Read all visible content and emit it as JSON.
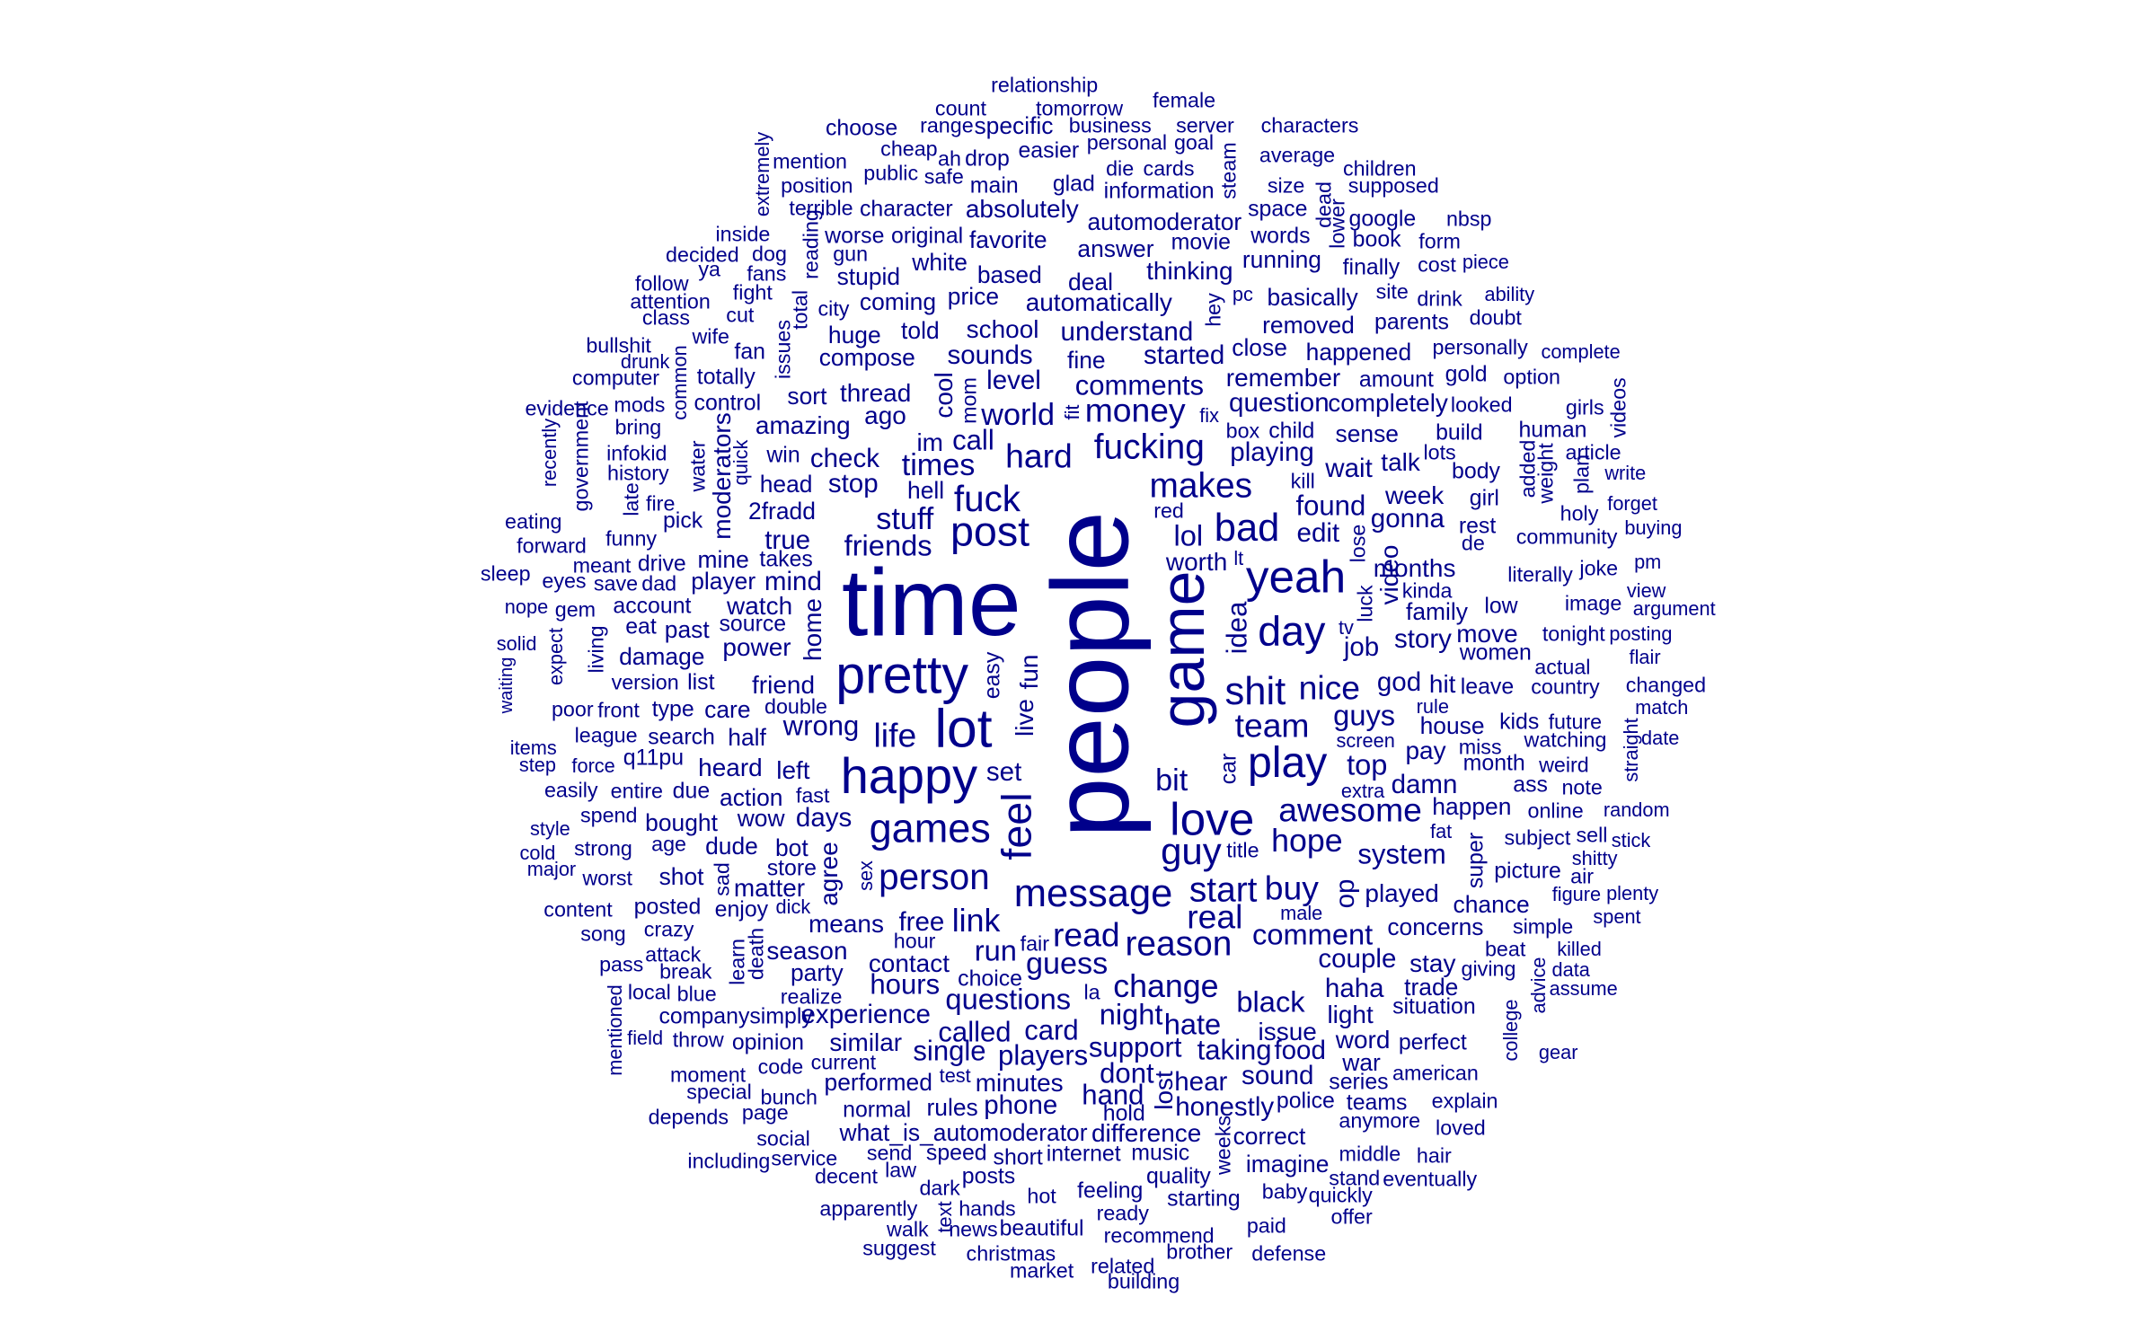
{
  "word_cloud": {
    "color": "#00008b",
    "words": [
      "relationship",
      "count",
      "tomorrow",
      "female",
      "range",
      "specific",
      "business",
      "server",
      "characters",
      "choose",
      "ah",
      "drop",
      "easier",
      "personal",
      "goal",
      "average",
      "cheap",
      "mention",
      "public",
      "safe",
      "die",
      "cards",
      "steam",
      "extremely",
      "children",
      "position",
      "main",
      "glad",
      "information",
      "size",
      "supposed",
      "terrible",
      "character",
      "absolutely",
      "space",
      "dead",
      "inside",
      "reading",
      "worse",
      "original",
      "automoderator",
      "words",
      "lower",
      "google",
      "nbsp",
      "decided",
      "ya",
      "dog",
      "gun",
      "favorite",
      "answer",
      "movie",
      "book",
      "form",
      "follow",
      "fans",
      "white",
      "running",
      "finally",
      "cost",
      "piece",
      "fight",
      "stupid",
      "based",
      "thinking",
      "pc",
      "basically",
      "site",
      "drink",
      "ability",
      "attention",
      "total",
      "city",
      "coming",
      "price",
      "deal",
      "hey",
      "class",
      "cut",
      "school",
      "automatically",
      "removed",
      "parents",
      "doubt",
      "wife",
      "issues",
      "huge",
      "told",
      "understand",
      "close",
      "personally",
      "complete",
      "bullshit",
      "fan",
      "compose",
      "sounds",
      "started",
      "happened",
      "drunk",
      "common",
      "computer",
      "totally",
      "thread",
      "level",
      "comments",
      "fine",
      "remember",
      "amount",
      "gold",
      "option",
      "mods",
      "control",
      "sort",
      "cool",
      "mom",
      "world",
      "money",
      "fit",
      "question",
      "completely",
      "looked",
      "evidence",
      "videos",
      "bring",
      "ago",
      "box",
      "child",
      "girls",
      "government",
      "amazing",
      "moderators",
      "win",
      "fix",
      "human",
      "recently",
      "infokid",
      "im",
      "call",
      "hard",
      "fucking",
      "playing",
      "build",
      "lots",
      "added",
      "article",
      "quick",
      "check",
      "times",
      "sense",
      "talk",
      "weight",
      "plan",
      "history",
      "water",
      "head",
      "stop",
      "kill",
      "wait",
      "body",
      "write",
      "late",
      "hell",
      "makes",
      "fire",
      "2fradd",
      "fuck",
      "red",
      "found",
      "week",
      "girl",
      "holy",
      "forget",
      "eating",
      "pick",
      "stuff",
      "post",
      "bad",
      "edit",
      "gonna",
      "rest",
      "community",
      "forward",
      "funny",
      "true",
      "friends",
      "lol",
      "de",
      "buying",
      "takes",
      "mine",
      "lose",
      "meant",
      "drive",
      "yeah",
      "months",
      "literally",
      "sleep",
      "player",
      "mind",
      "worth",
      "joke",
      "pm",
      "video",
      "time",
      "people",
      "lt",
      "eyes",
      "save",
      "dad",
      "game",
      "view",
      "account",
      "watch",
      "luck",
      "kinda",
      "nope",
      "gem",
      "image",
      "argument",
      "past",
      "idea",
      "family",
      "eat",
      "source",
      "low",
      "day",
      "tv",
      "home",
      "solid",
      "power",
      "story",
      "job",
      "living",
      "move",
      "women",
      "damage",
      "expect",
      "tonight",
      "posting",
      "actual",
      "waiting",
      "flair",
      "version",
      "list",
      "pretty",
      "shit",
      "nice",
      "god",
      "hit",
      "leave",
      "country",
      "changed",
      "fun",
      "easy",
      "friend",
      "double",
      "front",
      "type",
      "care",
      "live",
      "poor",
      "guys",
      "rule",
      "team",
      "wrong",
      "date",
      "match",
      "lot",
      "life",
      "kids",
      "future",
      "league",
      "search",
      "half",
      "screen",
      "house",
      "items",
      "q11pu",
      "watching",
      "happy",
      "top",
      "straight",
      "play",
      "miss",
      "force",
      "step",
      "heard",
      "set",
      "car",
      "month",
      "weird",
      "left",
      "pay",
      "feel",
      "action",
      "entire",
      "due",
      "damn",
      "easily",
      "ass",
      "note",
      "extra",
      "bit",
      "love",
      "awesome",
      "fast",
      "spend",
      "happen",
      "random",
      "bought",
      "days",
      "wow",
      "online",
      "games",
      "style",
      "system",
      "super",
      "subject",
      "sell",
      "hope",
      "guy",
      "stick",
      "age",
      "fat",
      "strong",
      "dude",
      "bot",
      "cold",
      "title",
      "shitty",
      "agree",
      "major",
      "worst",
      "shot",
      "store",
      "person",
      "picture",
      "air",
      "sex",
      "message",
      "played",
      "start",
      "buy",
      "op",
      "plenty",
      "sad",
      "matter",
      "figure",
      "content",
      "chance",
      "posted",
      "dick",
      "enjoy",
      "free",
      "link",
      "concerns",
      "spent",
      "real",
      "crazy",
      "simple",
      "song",
      "means",
      "read",
      "male",
      "death",
      "reason",
      "comment",
      "fair",
      "hour",
      "season",
      "killed",
      "beat",
      "learn",
      "run",
      "attack",
      "contact",
      "pass",
      "data",
      "party",
      "giving",
      "stay",
      "break",
      "couple",
      "guess",
      "choice",
      "hours",
      "assume",
      "local",
      "blue",
      "advice",
      "realize",
      "mentioned",
      "trade",
      "haha",
      "change",
      "college",
      "questions",
      "situation",
      "companysimply",
      "experience",
      "la",
      "black",
      "night",
      "light",
      "hate",
      "called",
      "card",
      "field",
      "throw",
      "opinion",
      "similar",
      "issue",
      "perfect",
      "word",
      "taking",
      "food",
      "gear",
      "support",
      "single",
      "players",
      "code",
      "current",
      "moment",
      "dont",
      "war",
      "american",
      "sound",
      "series",
      "test",
      "minutes",
      "special",
      "hear",
      "hand",
      "lost",
      "performed",
      "teams",
      "bunch",
      "explain",
      "depends",
      "page",
      "rules",
      "phone",
      "honestly",
      "police",
      "hold",
      "normal",
      "anymore",
      "difference",
      "loved",
      "what_is_automoderator",
      "weeks",
      "correct",
      "social",
      "speed",
      "service",
      "hair",
      "middle",
      "including",
      "internet",
      "music",
      "short",
      "send",
      "imagine",
      "law",
      "decent",
      "quality",
      "posts",
      "stand",
      "feeling",
      "eventually",
      "dark",
      "quickly",
      "hot",
      "baby",
      "starting",
      "apparently",
      "hands",
      "text",
      "ready",
      "offer",
      "walk",
      "news",
      "beautiful",
      "recommend",
      "paid",
      "suggest",
      "christmas",
      "brother",
      "defense",
      "market",
      "related",
      "building"
    ]
  }
}
